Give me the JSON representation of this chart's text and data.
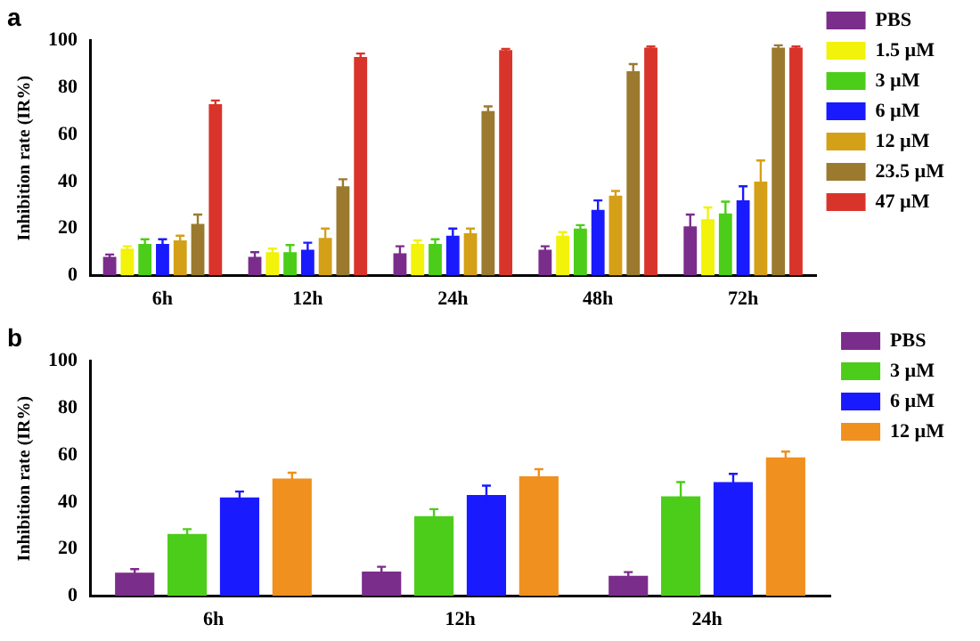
{
  "chart_data": [
    {
      "type": "bar",
      "title": "a",
      "ylabel": "Inhibition rate (IR%)",
      "categories": [
        "6h",
        "12h",
        "24h",
        "48h",
        "72h"
      ],
      "ylim": [
        0,
        100
      ],
      "yticks": [
        0,
        20,
        40,
        60,
        80,
        100
      ],
      "grid": false,
      "legend": "right",
      "series": [
        {
          "name": "PBS",
          "color": "#7b2d8b",
          "values": [
            8,
            8,
            9.5,
            11,
            21
          ],
          "errors": [
            1,
            2,
            3,
            1.5,
            5
          ]
        },
        {
          "name": "1.5 µM",
          "color": "#f2f20a",
          "values": [
            11.5,
            10,
            13.5,
            17,
            24
          ],
          "errors": [
            1,
            1.5,
            1.5,
            1.5,
            5
          ]
        },
        {
          "name": "3 µM",
          "color": "#4ccd1a",
          "values": [
            13.5,
            10,
            13.5,
            20,
            26.5
          ],
          "errors": [
            2,
            3,
            2,
            1.5,
            5
          ]
        },
        {
          "name": "6 µM",
          "color": "#1a1aff",
          "values": [
            13.5,
            11,
            17,
            28,
            32
          ],
          "errors": [
            2,
            3,
            3,
            4,
            6
          ]
        },
        {
          "name": "12 µM",
          "color": "#d4a017",
          "values": [
            15,
            16,
            18,
            34,
            40
          ],
          "errors": [
            2,
            4,
            2,
            2,
            9
          ]
        },
        {
          "name": "23.5 µM",
          "color": "#9b7a2f",
          "values": [
            22,
            38,
            70,
            87,
            97
          ],
          "errors": [
            4,
            3,
            2,
            3,
            1
          ]
        },
        {
          "name": "47 µM",
          "color": "#d9342b",
          "values": [
            73,
            93,
            96,
            97,
            97
          ],
          "errors": [
            1.5,
            1.5,
            0.5,
            0.5,
            0.5
          ]
        }
      ]
    },
    {
      "type": "bar",
      "title": "b",
      "ylabel": "Inhibition rate (IR%)",
      "categories": [
        "6h",
        "12h",
        "24h"
      ],
      "ylim": [
        0,
        100
      ],
      "yticks": [
        0,
        20,
        40,
        60,
        80,
        100
      ],
      "grid": false,
      "legend": "right",
      "series": [
        {
          "name": "PBS",
          "color": "#7b2d8b",
          "values": [
            10,
            10.5,
            8.7
          ],
          "errors": [
            1.5,
            2,
            1.5
          ]
        },
        {
          "name": "3 µM",
          "color": "#4ccd1a",
          "values": [
            26.5,
            34,
            42.5
          ],
          "errors": [
            2,
            3,
            6
          ]
        },
        {
          "name": "6 µM",
          "color": "#1a1aff",
          "values": [
            42,
            43,
            48.5
          ],
          "errors": [
            2.5,
            4,
            3.5
          ]
        },
        {
          "name": "12 µM",
          "color": "#f0901e",
          "values": [
            50,
            51,
            59
          ],
          "errors": [
            2.5,
            3,
            2.5
          ]
        }
      ]
    }
  ]
}
